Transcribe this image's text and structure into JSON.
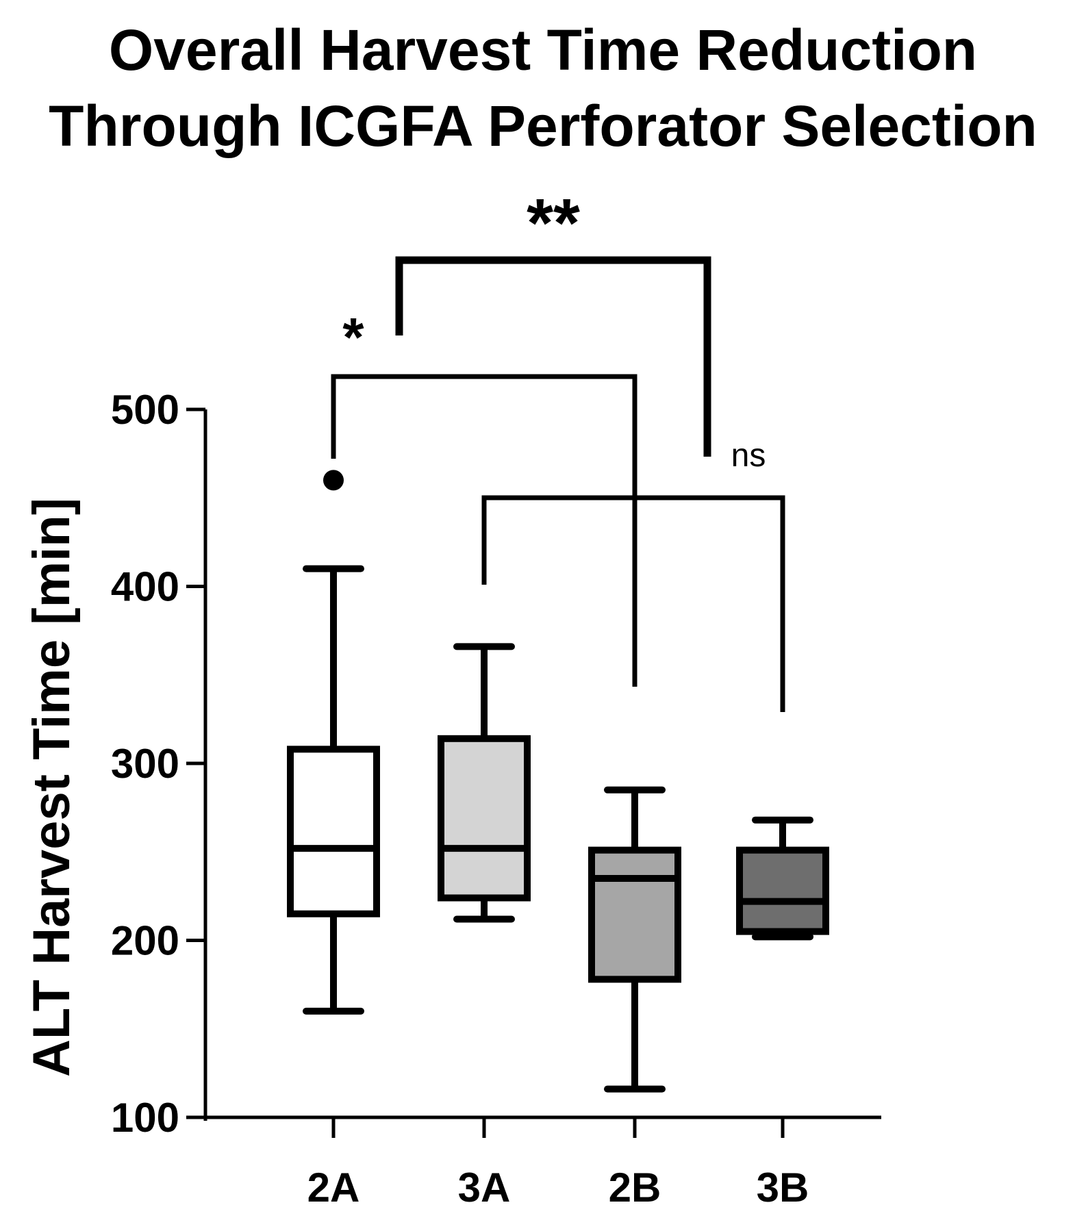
{
  "chart_data": {
    "type": "box",
    "title": [
      "Overall Harvest Time Reduction",
      "Through ICGFA Perforator Selection"
    ],
    "ylabel": "ALT Harvest Time [min]",
    "xlabel": "",
    "ylim": [
      100,
      500
    ],
    "yticks": [
      100,
      200,
      300,
      400,
      500
    ],
    "categories": [
      "2A",
      "3A",
      "2B",
      "3B"
    ],
    "boxes": [
      {
        "category": "2A",
        "min": 160,
        "q1": 215,
        "median": 252,
        "q3": 308,
        "max": 410,
        "outliers": [
          460
        ],
        "color": "#ffffff"
      },
      {
        "category": "3A",
        "min": 212,
        "q1": 224,
        "median": 252,
        "q3": 314,
        "max": 366,
        "outliers": [],
        "color": "#d4d4d4"
      },
      {
        "category": "2B",
        "min": 116,
        "q1": 178,
        "median": 235,
        "q3": 251,
        "max": 285,
        "outliers": [],
        "color": "#a6a6a6"
      },
      {
        "category": "3B",
        "min": 202,
        "q1": 205,
        "median": 222,
        "q3": 251,
        "max": 268,
        "outliers": [],
        "color": "#6e6e6e"
      }
    ],
    "comparisons": [
      {
        "from": "2A",
        "to": "2B",
        "label": "*"
      },
      {
        "from": "3A",
        "to": "3B",
        "label": "ns"
      },
      {
        "from": "2A",
        "to": "2B",
        "group_from": "2A–2B",
        "group_to": "3A–3B",
        "label": "**"
      }
    ],
    "grid": false,
    "legend": "none"
  }
}
